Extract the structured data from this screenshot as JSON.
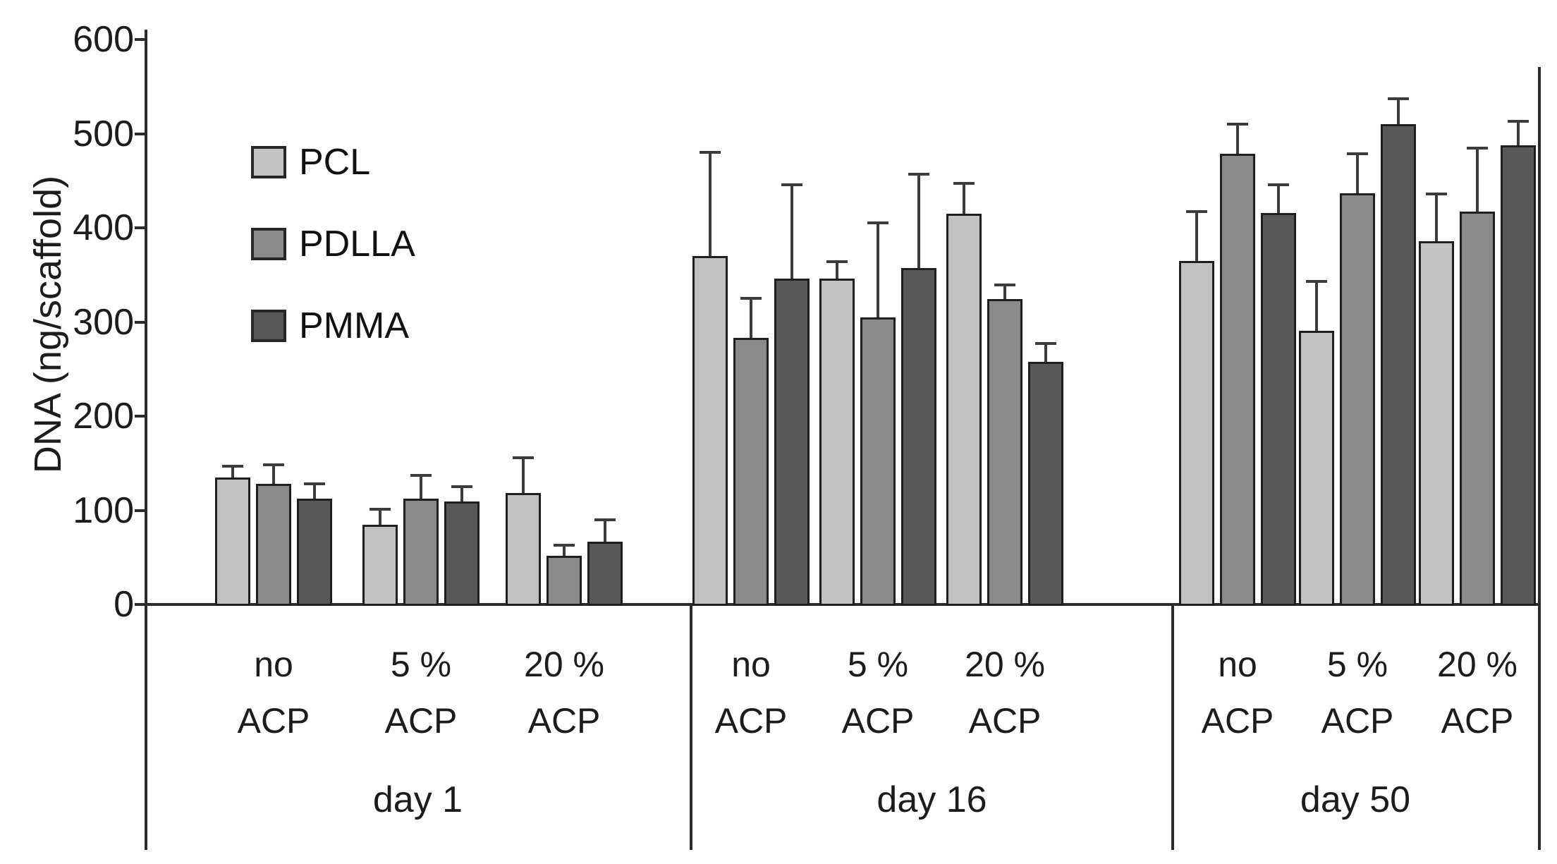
{
  "chart_data": {
    "type": "bar",
    "title": "",
    "ylabel": "DNA (ng/scaffold)",
    "xlabel": "",
    "ylim": [
      0,
      600
    ],
    "yticks": [
      0,
      100,
      200,
      300,
      400,
      500,
      600
    ],
    "grid": false,
    "legend_position": "top-left-inside",
    "axis_color": "#2b2b2b",
    "error_bar_color": "#3c3c3c",
    "groups": [
      {
        "label": "day 1"
      },
      {
        "label": "day 16"
      },
      {
        "label": "day 50"
      }
    ],
    "subgroups": [
      {
        "line1": "no",
        "line2": "ACP"
      },
      {
        "line1": "5 %",
        "line2": "ACP"
      },
      {
        "line1": "20 %",
        "line2": "ACP"
      }
    ],
    "series": [
      {
        "name": "PCL",
        "color": "#c2c2c2",
        "values": [
          [
            135,
            85,
            118
          ],
          [
            370,
            346,
            415
          ],
          [
            365,
            291,
            386
          ]
        ],
        "errors": [
          [
            12,
            16,
            38
          ],
          [
            110,
            18,
            32
          ],
          [
            52,
            52,
            50
          ]
        ]
      },
      {
        "name": "PDLLA",
        "color": "#8a8a8a",
        "values": [
          [
            128,
            112,
            52
          ],
          [
            283,
            305,
            324
          ],
          [
            479,
            437,
            417
          ]
        ],
        "errors": [
          [
            20,
            25,
            11
          ],
          [
            42,
            100,
            15
          ],
          [
            31,
            42,
            68
          ]
        ]
      },
      {
        "name": "PMMA",
        "color": "#585858",
        "values": [
          [
            112,
            109,
            67
          ],
          [
            346,
            357,
            258
          ],
          [
            416,
            510,
            488
          ]
        ],
        "errors": [
          [
            16,
            16,
            23
          ],
          [
            100,
            100,
            19
          ],
          [
            30,
            27,
            25
          ]
        ]
      }
    ]
  }
}
